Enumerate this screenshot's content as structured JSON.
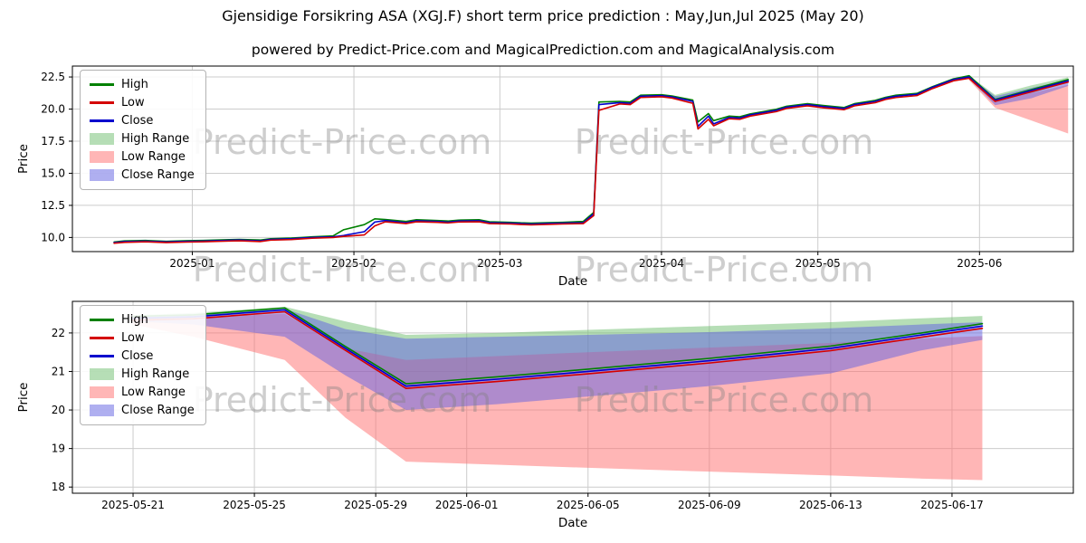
{
  "header": {
    "title": "Gjensidige Forsikring ASA (XGJ.F) short term price prediction : May,Jun,Jul 2025 (May 20)",
    "subtitle": "powered by Predict-Price.com and MagicalPrediction.com and MagicalAnalysis.com"
  },
  "watermark": {
    "text": "Predict-Price.com"
  },
  "colors": {
    "high_line": "#008000",
    "low_line": "#d40000",
    "close_line": "#0000cd",
    "high_range_fill": "rgba(110,190,110,0.5)",
    "low_range_fill": "rgba(255,110,110,0.5)",
    "close_range_fill": "rgba(95,95,225,0.5)",
    "grid": "#cccccc",
    "watermark_gray": "#808080"
  },
  "legend": {
    "items": [
      {
        "label": "High",
        "type": "line",
        "color": "#008000"
      },
      {
        "label": "Low",
        "type": "line",
        "color": "#d40000"
      },
      {
        "label": "Close",
        "type": "line",
        "color": "#0000cd"
      },
      {
        "label": "High Range",
        "type": "patch",
        "color": "rgba(110,190,110,0.5)"
      },
      {
        "label": "Low Range",
        "type": "patch",
        "color": "rgba(255,110,110,0.5)"
      },
      {
        "label": "Close Range",
        "type": "patch",
        "color": "rgba(95,95,225,0.5)"
      }
    ]
  },
  "chart_data": [
    {
      "name": "history-chart",
      "type": "line",
      "xlabel": "Date",
      "ylabel": "Price",
      "xlim": [
        "2024-12-09",
        "2025-06-19"
      ],
      "ylim": [
        8.9,
        23.35
      ],
      "grid": true,
      "legend_position": "upper-left",
      "xticks": [
        "2025-01-01",
        "2025-02-01",
        "2025-03-01",
        "2025-04-01",
        "2025-05-01",
        "2025-06-01"
      ],
      "xtick_labels": [
        "2025-01",
        "2025-02",
        "2025-03",
        "2025-04",
        "2025-05",
        "2025-06"
      ],
      "yticks": [
        10.0,
        12.5,
        15.0,
        17.5,
        20.0,
        22.5
      ],
      "ytick_labels": [
        "10.0",
        "12.5",
        "15.0",
        "17.5",
        "20.0",
        "22.5"
      ],
      "bands": [
        {
          "name": "high-range-band",
          "label": "High Range",
          "color": "rgba(110,190,110,0.5)",
          "x": [
            "2025-05-30",
            "2025-06-04",
            "2025-06-11",
            "2025-06-18"
          ],
          "upper": [
            22.6,
            21.1,
            21.85,
            22.48
          ],
          "lower": [
            22.45,
            20.7,
            21.25,
            22.1
          ]
        },
        {
          "name": "low-range-band",
          "label": "Low Range",
          "color": "rgba(255,110,110,0.5)",
          "x": [
            "2025-05-30",
            "2025-06-04",
            "2025-06-11",
            "2025-06-18"
          ],
          "upper": [
            22.45,
            20.65,
            21.25,
            21.9
          ],
          "lower": [
            22.25,
            20.1,
            19.1,
            18.1
          ]
        },
        {
          "name": "close-range-band",
          "label": "Close Range",
          "color": "rgba(95,95,225,0.5)",
          "x": [
            "2025-05-30",
            "2025-06-04",
            "2025-06-11",
            "2025-06-18"
          ],
          "upper": [
            22.55,
            21.0,
            21.65,
            22.3
          ],
          "lower": [
            22.35,
            20.3,
            20.85,
            21.8
          ]
        }
      ],
      "lines": [
        {
          "name": "high-line",
          "label": "High",
          "color": "#008000",
          "x": [
            "2024-12-17",
            "2024-12-19",
            "2024-12-23",
            "2024-12-27",
            "2024-12-31",
            "2025-01-03",
            "2025-01-08",
            "2025-01-10",
            "2025-01-14",
            "2025-01-16",
            "2025-01-20",
            "2025-01-22",
            "2025-01-24",
            "2025-01-28",
            "2025-01-30",
            "2025-02-03",
            "2025-02-05",
            "2025-02-07",
            "2025-02-11",
            "2025-02-13",
            "2025-02-17",
            "2025-02-19",
            "2025-02-21",
            "2025-02-25",
            "2025-02-27",
            "2025-03-03",
            "2025-03-05",
            "2025-03-07",
            "2025-03-11",
            "2025-03-13",
            "2025-03-17",
            "2025-03-19",
            "2025-03-20",
            "2025-03-24",
            "2025-03-26",
            "2025-03-28",
            "2025-04-01",
            "2025-04-03",
            "2025-04-07",
            "2025-04-08",
            "2025-04-10",
            "2025-04-11",
            "2025-04-14",
            "2025-04-16",
            "2025-04-18",
            "2025-04-23",
            "2025-04-25",
            "2025-04-29",
            "2025-05-02",
            "2025-05-06",
            "2025-05-08",
            "2025-05-12",
            "2025-05-14",
            "2025-05-16",
            "2025-05-20",
            "2025-05-23",
            "2025-05-27",
            "2025-05-30",
            "2025-06-04",
            "2025-06-18"
          ],
          "y": [
            9.65,
            9.73,
            9.77,
            9.7,
            9.75,
            9.77,
            9.83,
            9.85,
            9.8,
            9.9,
            9.95,
            10.0,
            10.05,
            10.12,
            10.6,
            11.0,
            11.45,
            11.4,
            11.25,
            11.38,
            11.32,
            11.28,
            11.35,
            11.38,
            11.22,
            11.18,
            11.14,
            11.12,
            11.16,
            11.18,
            11.25,
            11.95,
            20.55,
            20.6,
            20.55,
            21.08,
            21.12,
            21.02,
            20.7,
            19.0,
            19.65,
            19.1,
            19.45,
            19.4,
            19.62,
            19.98,
            20.22,
            20.42,
            20.28,
            20.12,
            20.42,
            20.68,
            20.92,
            21.08,
            21.22,
            21.75,
            22.35,
            22.6,
            20.75,
            22.3
          ]
        },
        {
          "name": "close-line",
          "label": "Close",
          "color": "#0000cd",
          "x": [
            "2024-12-17",
            "2024-12-19",
            "2024-12-23",
            "2024-12-27",
            "2024-12-31",
            "2025-01-03",
            "2025-01-08",
            "2025-01-10",
            "2025-01-14",
            "2025-01-16",
            "2025-01-20",
            "2025-01-22",
            "2025-01-24",
            "2025-01-28",
            "2025-01-30",
            "2025-02-03",
            "2025-02-05",
            "2025-02-07",
            "2025-02-11",
            "2025-02-13",
            "2025-02-17",
            "2025-02-19",
            "2025-02-21",
            "2025-02-25",
            "2025-02-27",
            "2025-03-03",
            "2025-03-05",
            "2025-03-07",
            "2025-03-11",
            "2025-03-13",
            "2025-03-17",
            "2025-03-19",
            "2025-03-20",
            "2025-03-24",
            "2025-03-26",
            "2025-03-28",
            "2025-04-01",
            "2025-04-03",
            "2025-04-07",
            "2025-04-08",
            "2025-04-10",
            "2025-04-11",
            "2025-04-14",
            "2025-04-16",
            "2025-04-18",
            "2025-04-23",
            "2025-04-25",
            "2025-04-29",
            "2025-05-02",
            "2025-05-06",
            "2025-05-08",
            "2025-05-12",
            "2025-05-14",
            "2025-05-16",
            "2025-05-20",
            "2025-05-23",
            "2025-05-27",
            "2025-05-30",
            "2025-06-04",
            "2025-06-18"
          ],
          "y": [
            9.6,
            9.68,
            9.72,
            9.65,
            9.7,
            9.72,
            9.78,
            9.8,
            9.73,
            9.85,
            9.9,
            9.95,
            10.0,
            10.05,
            10.15,
            10.45,
            11.2,
            11.32,
            11.15,
            11.3,
            11.25,
            11.2,
            11.28,
            11.3,
            11.15,
            11.12,
            11.08,
            11.05,
            11.1,
            11.12,
            11.15,
            11.85,
            20.35,
            20.5,
            20.45,
            21.0,
            21.05,
            20.95,
            20.6,
            18.65,
            19.45,
            18.85,
            19.35,
            19.3,
            19.55,
            19.9,
            20.15,
            20.35,
            20.2,
            20.05,
            20.35,
            20.6,
            20.85,
            21.0,
            21.15,
            21.7,
            22.3,
            22.5,
            20.7,
            22.2
          ]
        },
        {
          "name": "low-line",
          "label": "Low",
          "color": "#d40000",
          "x": [
            "2024-12-17",
            "2024-12-19",
            "2024-12-23",
            "2024-12-27",
            "2024-12-31",
            "2025-01-03",
            "2025-01-08",
            "2025-01-10",
            "2025-01-14",
            "2025-01-16",
            "2025-01-20",
            "2025-01-22",
            "2025-01-24",
            "2025-01-28",
            "2025-01-30",
            "2025-02-03",
            "2025-02-05",
            "2025-02-07",
            "2025-02-11",
            "2025-02-13",
            "2025-02-17",
            "2025-02-19",
            "2025-02-21",
            "2025-02-25",
            "2025-02-27",
            "2025-03-03",
            "2025-03-05",
            "2025-03-07",
            "2025-03-11",
            "2025-03-13",
            "2025-03-17",
            "2025-03-19",
            "2025-03-20",
            "2025-03-24",
            "2025-03-26",
            "2025-03-28",
            "2025-04-01",
            "2025-04-03",
            "2025-04-07",
            "2025-04-08",
            "2025-04-10",
            "2025-04-11",
            "2025-04-14",
            "2025-04-16",
            "2025-04-18",
            "2025-04-23",
            "2025-04-25",
            "2025-04-29",
            "2025-05-02",
            "2025-05-06",
            "2025-05-08",
            "2025-05-12",
            "2025-05-14",
            "2025-05-16",
            "2025-05-20",
            "2025-05-23",
            "2025-05-27",
            "2025-05-30",
            "2025-06-04",
            "2025-06-18"
          ],
          "y": [
            9.55,
            9.62,
            9.66,
            9.6,
            9.64,
            9.66,
            9.72,
            9.74,
            9.68,
            9.79,
            9.84,
            9.89,
            9.94,
            10.0,
            10.08,
            10.2,
            10.9,
            11.22,
            11.08,
            11.22,
            11.18,
            11.13,
            11.2,
            11.22,
            11.08,
            11.05,
            11.01,
            10.98,
            11.03,
            11.05,
            11.08,
            11.7,
            19.9,
            20.4,
            20.35,
            20.9,
            20.96,
            20.86,
            20.45,
            18.45,
            19.2,
            18.7,
            19.25,
            19.2,
            19.45,
            19.8,
            20.05,
            20.25,
            20.1,
            19.95,
            20.25,
            20.5,
            20.75,
            20.9,
            21.05,
            21.6,
            22.2,
            22.4,
            20.6,
            22.1
          ]
        }
      ]
    },
    {
      "name": "prediction-chart",
      "type": "line",
      "xlabel": "Date",
      "ylabel": "Price",
      "xlim": [
        "2025-05-19",
        "2025-06-21"
      ],
      "ylim": [
        17.84,
        22.82
      ],
      "grid": true,
      "legend_position": "upper-left",
      "xticks": [
        "2025-05-21",
        "2025-05-25",
        "2025-05-29",
        "2025-06-01",
        "2025-06-05",
        "2025-06-09",
        "2025-06-13",
        "2025-06-17"
      ],
      "xtick_labels": [
        "2025-05-21",
        "2025-05-25",
        "2025-05-29",
        "2025-06-01",
        "2025-06-05",
        "2025-06-09",
        "2025-06-13",
        "2025-06-17"
      ],
      "yticks": [
        18,
        19,
        20,
        21,
        22
      ],
      "ytick_labels": [
        "18",
        "19",
        "20",
        "21",
        "22"
      ],
      "bands": [
        {
          "name": "high-range-band",
          "label": "High Range",
          "color": "rgba(110,190,110,0.5)",
          "x": [
            "2025-05-21",
            "2025-05-23",
            "2025-05-26",
            "2025-05-28",
            "2025-05-30",
            "2025-06-02",
            "2025-06-05",
            "2025-06-09",
            "2025-06-13",
            "2025-06-16",
            "2025-06-18"
          ],
          "upper": [
            22.46,
            22.52,
            22.68,
            22.3,
            21.95,
            22.0,
            22.08,
            22.18,
            22.28,
            22.38,
            22.44
          ],
          "lower": [
            22.36,
            22.42,
            22.6,
            21.62,
            20.68,
            20.86,
            21.06,
            21.34,
            21.66,
            22.0,
            22.24
          ]
        },
        {
          "name": "low-range-band",
          "label": "Low Range",
          "color": "rgba(255,110,110,0.5)",
          "x": [
            "2025-05-21",
            "2025-05-23",
            "2025-05-26",
            "2025-05-28",
            "2025-05-30",
            "2025-06-02",
            "2025-06-05",
            "2025-06-09",
            "2025-06-13",
            "2025-06-16",
            "2025-06-18"
          ],
          "upper": [
            22.36,
            22.4,
            22.5,
            21.6,
            21.3,
            21.4,
            21.5,
            21.62,
            21.74,
            21.86,
            21.92
          ],
          "lower": [
            22.22,
            21.9,
            21.3,
            19.8,
            18.66,
            18.58,
            18.5,
            18.4,
            18.3,
            18.22,
            18.18
          ]
        },
        {
          "name": "close-range-band",
          "label": "Close Range",
          "color": "rgba(95,95,225,0.5)",
          "x": [
            "2025-05-21",
            "2025-05-23",
            "2025-05-26",
            "2025-05-28",
            "2025-05-30",
            "2025-06-02",
            "2025-06-05",
            "2025-06-09",
            "2025-06-13",
            "2025-06-16",
            "2025-06-18"
          ],
          "upper": [
            22.41,
            22.46,
            22.63,
            22.1,
            21.85,
            21.9,
            21.95,
            22.02,
            22.12,
            22.22,
            22.28
          ],
          "lower": [
            22.3,
            22.22,
            21.9,
            20.9,
            20.0,
            20.15,
            20.35,
            20.62,
            20.95,
            21.55,
            21.82
          ]
        }
      ],
      "lines": [
        {
          "name": "high-line",
          "label": "High",
          "color": "#008000",
          "x": [
            "2025-05-21",
            "2025-05-23",
            "2025-05-26",
            "2025-05-28",
            "2025-05-30",
            "2025-06-02",
            "2025-06-05",
            "2025-06-09",
            "2025-06-13",
            "2025-06-16",
            "2025-06-18"
          ],
          "y": [
            22.43,
            22.47,
            22.65,
            21.65,
            20.68,
            20.86,
            21.06,
            21.34,
            21.66,
            22.0,
            22.24
          ]
        },
        {
          "name": "close-line",
          "label": "Close",
          "color": "#0000cd",
          "x": [
            "2025-05-21",
            "2025-05-23",
            "2025-05-26",
            "2025-05-28",
            "2025-05-30",
            "2025-06-02",
            "2025-06-05",
            "2025-06-09",
            "2025-06-13",
            "2025-06-16",
            "2025-06-18"
          ],
          "y": [
            22.38,
            22.42,
            22.6,
            21.6,
            20.62,
            20.8,
            21.0,
            21.28,
            21.6,
            21.95,
            22.18
          ]
        },
        {
          "name": "low-line",
          "label": "Low",
          "color": "#d40000",
          "x": [
            "2025-05-21",
            "2025-05-23",
            "2025-05-26",
            "2025-05-28",
            "2025-05-30",
            "2025-06-02",
            "2025-06-05",
            "2025-06-09",
            "2025-06-13",
            "2025-06-16",
            "2025-06-18"
          ],
          "y": [
            22.33,
            22.37,
            22.55,
            21.55,
            20.56,
            20.74,
            20.94,
            21.22,
            21.54,
            21.89,
            22.12
          ]
        }
      ]
    }
  ]
}
